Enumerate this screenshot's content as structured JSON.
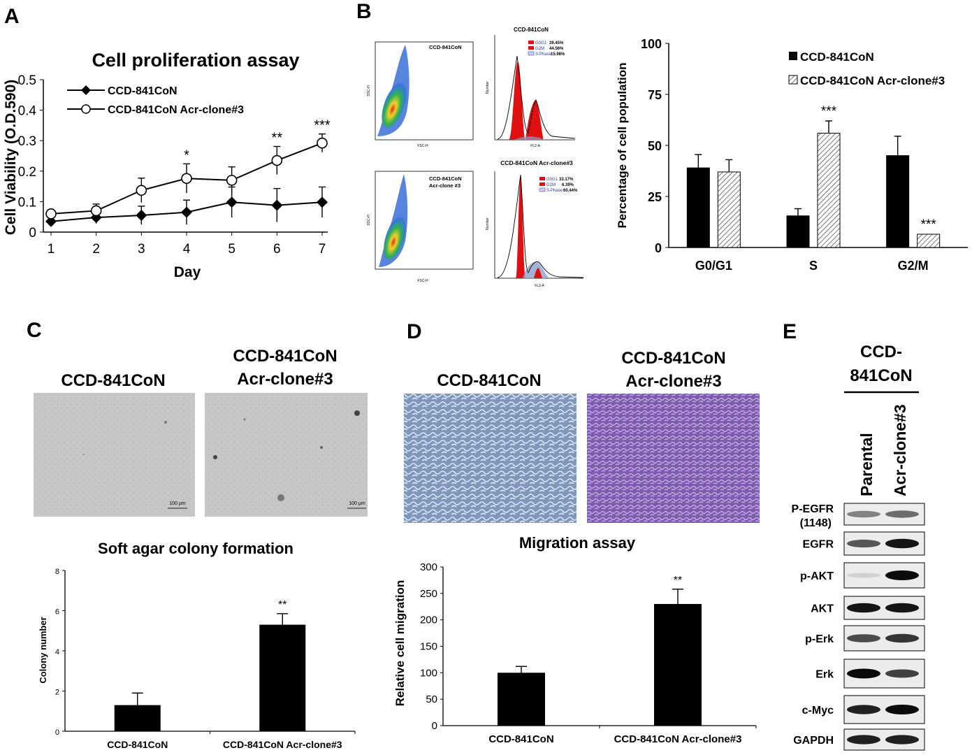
{
  "panel_labels": {
    "a": "A",
    "b": "B",
    "c": "C",
    "d": "D",
    "e": "E"
  },
  "colors": {
    "black": "#000000",
    "red": "#e01010",
    "hatch": "#555555",
    "agar": "#c9c9c9",
    "stain_control": "#8a9fc0",
    "stain_clone": "#8a6db8"
  },
  "chart_data": [
    {
      "id": "A",
      "type": "line",
      "title": "Cell proliferation assay",
      "xlabel": "Day",
      "ylabel": "Cell Viability (O.D.590)",
      "x": [
        1,
        2,
        3,
        4,
        5,
        6,
        7
      ],
      "x_tick_labels": [
        "1",
        "2",
        "3",
        "4",
        "5",
        "6",
        "7"
      ],
      "ylim": [
        0,
        0.5
      ],
      "y_tick_labels": [
        "0",
        "0.1",
        "0.2",
        "0.3",
        "0.4",
        "0.5"
      ],
      "series": [
        {
          "name": "CCD-841CoN",
          "marker": "diamond-filled",
          "values": [
            0.035,
            0.048,
            0.055,
            0.065,
            0.098,
            0.088,
            0.098
          ],
          "errors": [
            0.015,
            0.02,
            0.03,
            0.04,
            0.05,
            0.055,
            0.05
          ]
        },
        {
          "name": "CCD-841CoN Acr-clone#3",
          "marker": "circle-open",
          "values": [
            0.06,
            0.07,
            0.137,
            0.176,
            0.17,
            0.235,
            0.292
          ],
          "errors": [
            0.01,
            0.022,
            0.04,
            0.048,
            0.044,
            0.046,
            0.03
          ]
        }
      ],
      "annotations": [
        {
          "x": 4,
          "text": "*"
        },
        {
          "x": 6,
          "text": "**"
        },
        {
          "x": 7,
          "text": "***"
        }
      ]
    },
    {
      "id": "B-bar",
      "type": "bar",
      "categories": [
        "G0/G1",
        "S",
        "G2/M"
      ],
      "ylabel": "Percentage of cell population",
      "ylim": [
        0,
        100
      ],
      "y_tick_labels": [
        "0",
        "25",
        "50",
        "75",
        "100"
      ],
      "series": [
        {
          "name": "CCD-841CoN",
          "pattern": "solid",
          "values": [
            39,
            15.5,
            45
          ],
          "errors": [
            6.5,
            3.5,
            9.5
          ]
        },
        {
          "name": "CCD-841CoN Acr-clone#3",
          "pattern": "hatched",
          "values": [
            37,
            56,
            6.5
          ],
          "errors": [
            6,
            6,
            0
          ]
        }
      ],
      "annotations": [
        {
          "category": "S",
          "series": 1,
          "text": "***"
        },
        {
          "category": "G2/M",
          "series": 1,
          "text": "***"
        }
      ]
    },
    {
      "id": "C-bar",
      "type": "bar",
      "title": "Soft agar colony formation",
      "ylabel": "Colony number",
      "categories": [
        "CCD-841CoN",
        "CCD-841CoN Acr-clone#3"
      ],
      "values": [
        1.3,
        5.3
      ],
      "errors": [
        0.6,
        0.55
      ],
      "ylim": [
        0,
        8
      ],
      "y_tick_labels": [
        "0",
        "2",
        "4",
        "6",
        "8"
      ],
      "annotations": [
        {
          "category": "CCD-841CoN Acr-clone#3",
          "text": "**"
        }
      ]
    },
    {
      "id": "D-bar",
      "type": "bar",
      "title": "Migration assay",
      "ylabel": "Relative cell migration",
      "categories": [
        "CCD-841CoN",
        "CCD-841CoN Acr-clone#3"
      ],
      "values": [
        100,
        230
      ],
      "errors": [
        12,
        28
      ],
      "ylim": [
        0,
        300
      ],
      "y_tick_labels": [
        "0",
        "50",
        "100",
        "150",
        "200",
        "250",
        "300"
      ],
      "annotations": [
        {
          "category": "CCD-841CoN Acr-clone#3",
          "text": "**"
        }
      ]
    }
  ],
  "flow": {
    "top": {
      "scatter_label": "CCD-841CoN",
      "hist_title": "CCD-841CoN",
      "stats": [
        {
          "label": "G0G1",
          "value": "39.45%"
        },
        {
          "label": "G2M",
          "value": "44.56%"
        },
        {
          "label": "S-Phase",
          "value": "15.98%"
        }
      ]
    },
    "bottom": {
      "scatter_label_1": "CCD-841CoN",
      "scatter_label_2": "Acr-clone #3",
      "hist_title": "CCD-841CoN Acr-clone#3",
      "stats": [
        {
          "label": "G0G1",
          "value": "33.17%"
        },
        {
          "label": "G2M",
          "value": "6.39%"
        },
        {
          "label": "S-Phase",
          "value": "60.44%"
        }
      ]
    },
    "axis_fsc": "FSC-H",
    "axis_ssc": "SSC-H",
    "axis_fl2": "FL2-A",
    "axis_number": "Number"
  },
  "panel_c": {
    "label_left": "CCD-841CoN",
    "label_right_1": "CCD-841CoN",
    "label_right_2": "Acr-clone#3",
    "scale_bar": "100 µm"
  },
  "panel_d": {
    "label_left": "CCD-841CoN",
    "label_right_1": "CCD-841CoN",
    "label_right_2": "Acr-clone#3"
  },
  "panel_e": {
    "header_1": "CCD-",
    "header_2": "841CoN",
    "lane_1": "Parental",
    "lane_2": "Acr-clone#3",
    "rows": [
      {
        "label": "P-EGFR",
        "sublabel": "(1148)",
        "lane1": 0.45,
        "lane2": 0.55
      },
      {
        "label": "EGFR",
        "lane1": 0.65,
        "lane2": 0.95
      },
      {
        "label": "p-AKT",
        "lane1": 0.1,
        "lane2": 1.0
      },
      {
        "label": "AKT",
        "lane1": 0.95,
        "lane2": 0.95
      },
      {
        "label": "p-Erk",
        "lane1": 0.7,
        "lane2": 0.8
      },
      {
        "label": "Erk",
        "lane1": 1.0,
        "lane2": 0.75
      },
      {
        "label": "c-Myc",
        "lane1": 0.9,
        "lane2": 1.0
      },
      {
        "label": "GAPDH",
        "lane1": 0.9,
        "lane2": 0.9
      }
    ]
  }
}
